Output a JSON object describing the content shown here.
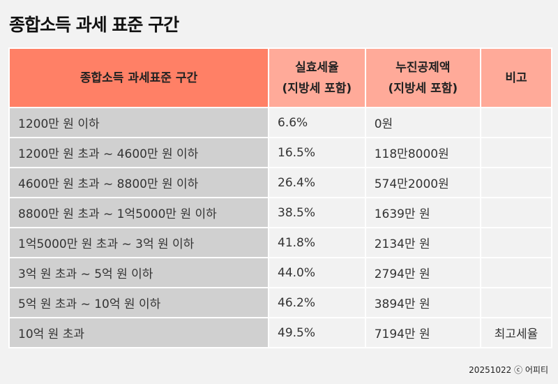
{
  "title": "종합소득 과세 표준 구간",
  "headers": [
    "종합소득 과세표준 구간",
    "실효세율\n(지방세 포함)",
    "누진공제액\n(지방세 포함)",
    "비고"
  ],
  "headers_lines": {
    "h1a": "실효세율",
    "h1b": "(지방세 포함)",
    "h2a": "누진공제액",
    "h2b": "(지방세 포함)"
  },
  "rows": [
    [
      "1200만 원 이하",
      "6.6%",
      "0원",
      ""
    ],
    [
      "1200만 원 초과 ~ 4600만 원 이하",
      "16.5%",
      "118만8000원",
      ""
    ],
    [
      "4600만 원 초과 ~ 8800만 원 이하",
      "26.4%",
      "574만2000원",
      ""
    ],
    [
      "8800만 원 초과 ~ 1억5000만 원 이하",
      "38.5%",
      "1639만 원",
      ""
    ],
    [
      "1억5000만 원 초과 ~ 3억 원 이하",
      "41.8%",
      "2134만 원",
      ""
    ],
    [
      "3억 원 초과 ~ 5억 원 이하",
      "44.0%",
      "2794만 원",
      ""
    ],
    [
      "5억 원 초과 ~ 10억 원 이하",
      "46.2%",
      "3894만 원",
      ""
    ],
    [
      "10억 원 초과",
      "49.5%",
      "7194만 원",
      "최고세율"
    ]
  ],
  "footer": "20251022 ⓒ 어피티",
  "colors": {
    "header_primary": "#ff8066",
    "header_secondary": "#ffaa99",
    "first_col": "#d0d0d0"
  }
}
